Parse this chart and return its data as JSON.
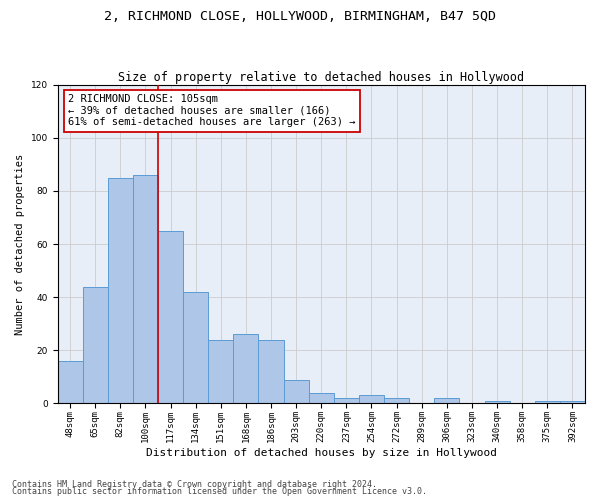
{
  "title1": "2, RICHMOND CLOSE, HOLLYWOOD, BIRMINGHAM, B47 5QD",
  "title2": "Size of property relative to detached houses in Hollywood",
  "xlabel": "Distribution of detached houses by size in Hollywood",
  "ylabel": "Number of detached properties",
  "bar_labels": [
    "48sqm",
    "65sqm",
    "82sqm",
    "100sqm",
    "117sqm",
    "134sqm",
    "151sqm",
    "168sqm",
    "186sqm",
    "203sqm",
    "220sqm",
    "237sqm",
    "254sqm",
    "272sqm",
    "289sqm",
    "306sqm",
    "323sqm",
    "340sqm",
    "358sqm",
    "375sqm",
    "392sqm"
  ],
  "bar_values": [
    16,
    44,
    85,
    86,
    65,
    42,
    24,
    26,
    24,
    9,
    4,
    2,
    3,
    2,
    0,
    2,
    0,
    1,
    0,
    1,
    1
  ],
  "bar_color": "#aec6e8",
  "bar_edge_color": "#5b9bd5",
  "vline_x_idx": 3.5,
  "vline_color": "#cc0000",
  "annotation_text": "2 RICHMOND CLOSE: 105sqm\n← 39% of detached houses are smaller (166)\n61% of semi-detached houses are larger (263) →",
  "annotation_box_color": "#ffffff",
  "annotation_box_edge": "#cc0000",
  "ylim": [
    0,
    120
  ],
  "yticks": [
    0,
    20,
    40,
    60,
    80,
    100,
    120
  ],
  "grid_color": "#cccccc",
  "bg_color": "#e8eef8",
  "footer1": "Contains HM Land Registry data © Crown copyright and database right 2024.",
  "footer2": "Contains public sector information licensed under the Open Government Licence v3.0.",
  "title1_fontsize": 9.5,
  "title2_fontsize": 8.5,
  "xlabel_fontsize": 8,
  "ylabel_fontsize": 7.5,
  "tick_fontsize": 6.5,
  "annotation_fontsize": 7.5,
  "footer_fontsize": 6
}
